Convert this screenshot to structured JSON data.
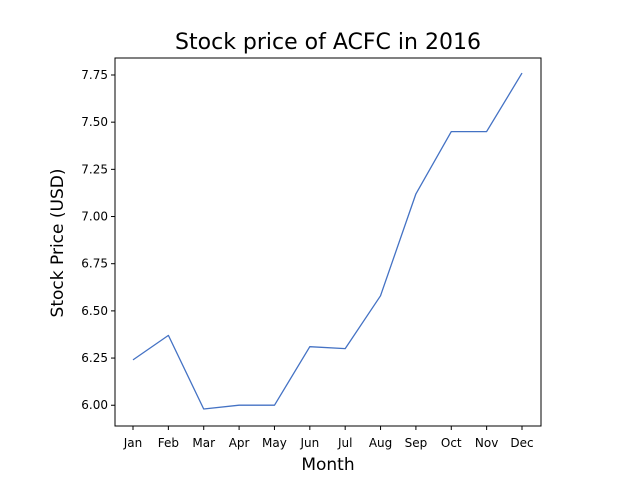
{
  "chart_data": {
    "type": "line",
    "title": "Stock price of ACFC in 2016",
    "xlabel": "Month",
    "ylabel": "Stock Price (USD)",
    "categories": [
      "Jan",
      "Feb",
      "Mar",
      "Apr",
      "May",
      "Jun",
      "Jul",
      "Aug",
      "Sep",
      "Oct",
      "Nov",
      "Dec"
    ],
    "series": [
      {
        "values": [
          6.24,
          6.37,
          5.98,
          6.0,
          6.0,
          6.31,
          6.3,
          6.58,
          7.12,
          7.45,
          7.45,
          7.76
        ],
        "color": "#4472c4"
      }
    ],
    "ylim": [
      5.89,
      7.84
    ],
    "yticks": [
      "6.00",
      "6.25",
      "6.50",
      "6.75",
      "7.00",
      "7.25",
      "7.50",
      "7.75"
    ],
    "grid": false,
    "legend": "none"
  }
}
